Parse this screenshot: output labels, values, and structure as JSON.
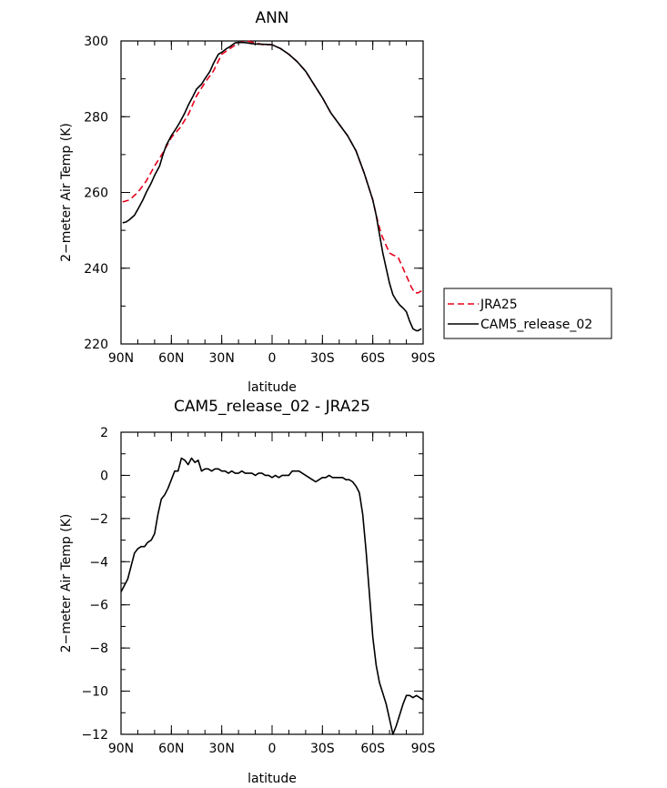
{
  "chart_data": [
    {
      "type": "line",
      "title": "ANN",
      "xlabel": "latitude",
      "ylabel": "2-meter Air Temp (K)",
      "xlim": [
        90,
        -90
      ],
      "ylim": [
        220,
        300
      ],
      "x_ticks": [
        90,
        60,
        30,
        0,
        -30,
        -60,
        -90
      ],
      "x_tick_labels": [
        "90N",
        "60N",
        "30N",
        "0",
        "30S",
        "60S",
        "90S"
      ],
      "y_ticks": [
        220,
        240,
        260,
        280,
        300
      ],
      "y_tick_labels": [
        "220",
        "240",
        "260",
        "280",
        "300"
      ],
      "legend_position": "right",
      "series": [
        {
          "name": "JRA25",
          "color": "#e8001c",
          "style": "dashed",
          "x": [
            89,
            85,
            80,
            75,
            70,
            65,
            60,
            55,
            50,
            45,
            40,
            35,
            30,
            25,
            20,
            15,
            10,
            5,
            0,
            -5,
            -10,
            -15,
            -20,
            -25,
            -30,
            -35,
            -40,
            -45,
            -50,
            -55,
            -60,
            -62,
            -65,
            -68,
            -70,
            -72,
            -75,
            -78,
            -80,
            -83,
            -85,
            -87,
            -89
          ],
          "y": [
            257.5,
            258,
            260,
            263,
            267,
            270.5,
            274.5,
            277,
            280.5,
            285.5,
            289,
            292,
            296.5,
            298,
            299.5,
            300,
            299.5,
            299,
            299,
            298,
            296.5,
            294.5,
            292,
            288.5,
            285,
            281,
            278,
            275,
            271,
            265,
            258,
            254,
            249,
            246,
            244,
            243.5,
            243,
            240,
            238,
            235,
            233.5,
            233.5,
            234
          ]
        },
        {
          "name": "CAM5_release_02",
          "color": "#000000",
          "style": "solid",
          "x": [
            89,
            87,
            85,
            82,
            80,
            77,
            75,
            72,
            70,
            67,
            65,
            63,
            60,
            57,
            55,
            52,
            50,
            47,
            45,
            42,
            40,
            37,
            35,
            32,
            30,
            27,
            25,
            22,
            20,
            17,
            15,
            12,
            10,
            5,
            0,
            -5,
            -10,
            -15,
            -20,
            -25,
            -30,
            -35,
            -40,
            -45,
            -50,
            -55,
            -60,
            -62,
            -64,
            -66,
            -68,
            -70,
            -72,
            -74,
            -76,
            -78,
            -80,
            -82,
            -84,
            -86,
            -87,
            -88,
            -89
          ],
          "y": [
            252,
            252.2,
            252.8,
            254,
            255.5,
            258,
            260,
            262.5,
            264.5,
            267,
            270,
            272.5,
            275,
            277,
            278.5,
            281,
            283,
            285.5,
            287.3,
            288.6,
            290,
            292,
            294,
            296.5,
            297,
            298,
            298.5,
            299.5,
            299.6,
            299.6,
            299.5,
            299.3,
            299.2,
            299.1,
            299,
            298,
            296.5,
            294.5,
            292,
            288.5,
            285,
            281,
            278,
            275,
            271,
            265,
            258,
            254,
            249,
            244,
            240,
            236,
            233,
            231.5,
            230.3,
            229.5,
            228.5,
            226,
            224,
            223.5,
            223.5,
            223.8,
            224
          ]
        }
      ]
    },
    {
      "type": "line",
      "title": "CAM5_release_02 - JRA25",
      "xlabel": "latitude",
      "ylabel": "2-meter Air Temp (K)",
      "xlim": [
        90,
        -90
      ],
      "ylim": [
        -12,
        2
      ],
      "x_ticks": [
        90,
        60,
        30,
        0,
        -30,
        -60,
        -90
      ],
      "x_tick_labels": [
        "90N",
        "60N",
        "30N",
        "0",
        "30S",
        "60S",
        "90S"
      ],
      "y_ticks": [
        -12,
        -10,
        -8,
        -6,
        -4,
        -2,
        0,
        2
      ],
      "y_tick_labels": [
        "-12",
        "-10",
        "-8",
        "-6",
        "-4",
        "-2",
        "0",
        "2"
      ],
      "series": [
        {
          "name": "CAM5_release_02 - JRA25",
          "color": "#000000",
          "style": "solid",
          "x": [
            90,
            86,
            84,
            82,
            80,
            78,
            76,
            74,
            72,
            70,
            68,
            66,
            64,
            62,
            60,
            58,
            56,
            54,
            52,
            50,
            48,
            46,
            44,
            42,
            40,
            38,
            36,
            34,
            32,
            30,
            28,
            26,
            24,
            22,
            20,
            18,
            16,
            14,
            12,
            10,
            8,
            6,
            4,
            2,
            0,
            -2,
            -4,
            -6,
            -8,
            -10,
            -12,
            -14,
            -16,
            -18,
            -20,
            -22,
            -24,
            -26,
            -28,
            -30,
            -32,
            -34,
            -36,
            -38,
            -40,
            -42,
            -44,
            -46,
            -48,
            -50,
            -52,
            -54,
            -56,
            -58,
            -60,
            -62,
            -64,
            -66,
            -68,
            -70,
            -72,
            -74,
            -76,
            -78,
            -80,
            -82,
            -84,
            -86,
            -88,
            -90
          ],
          "y": [
            -5.4,
            -4.8,
            -4.2,
            -3.6,
            -3.4,
            -3.3,
            -3.3,
            -3.1,
            -3.0,
            -2.7,
            -1.8,
            -1.1,
            -0.9,
            -0.6,
            -0.2,
            0.2,
            0.2,
            0.8,
            0.7,
            0.5,
            0.8,
            0.6,
            0.7,
            0.2,
            0.3,
            0.3,
            0.2,
            0.3,
            0.3,
            0.2,
            0.2,
            0.1,
            0.2,
            0.1,
            0.1,
            0.2,
            0.1,
            0.1,
            0.1,
            0.0,
            0.1,
            0.1,
            0.0,
            0.0,
            -0.1,
            0.0,
            -0.1,
            0.0,
            0.0,
            0.0,
            0.2,
            0.2,
            0.2,
            0.1,
            0.0,
            -0.1,
            -0.2,
            -0.3,
            -0.2,
            -0.1,
            -0.1,
            0.0,
            -0.1,
            -0.1,
            -0.1,
            -0.1,
            -0.2,
            -0.2,
            -0.3,
            -0.5,
            -0.8,
            -1.8,
            -3.5,
            -5.5,
            -7.5,
            -8.8,
            -9.6,
            -10.1,
            -10.6,
            -11.3,
            -12.0,
            -11.6,
            -11.1,
            -10.6,
            -10.2,
            -10.2,
            -10.3,
            -10.2,
            -10.3,
            -10.4
          ]
        }
      ]
    }
  ]
}
